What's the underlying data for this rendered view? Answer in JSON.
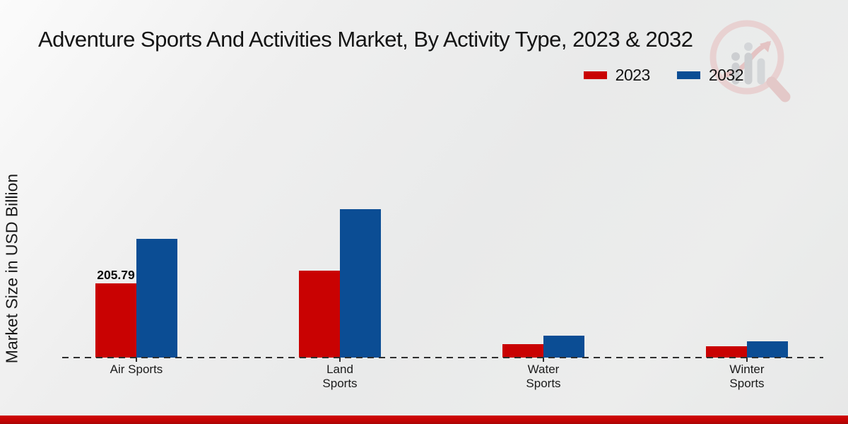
{
  "title": "Adventure Sports And Activities Market, By Activity Type, 2023 & 2032",
  "legend": {
    "items": [
      {
        "label": "2023",
        "color": "#c90202"
      },
      {
        "label": "2032",
        "color": "#0b4d94"
      }
    ]
  },
  "icons": {
    "watermark": "magnifier-bar-chart-logo"
  },
  "colors": {
    "bar_2023": "#c90202",
    "bar_2032": "#0b4d94",
    "footer_bar": "#c40404",
    "baseline": "#2e2e2e",
    "background": "#eaebeb"
  },
  "chart_data": {
    "type": "bar",
    "title": "Adventure Sports And Activities Market, By Activity Type, 2023 & 2032",
    "categories": [
      "Air Sports",
      "Land Sports",
      "Water Sports",
      "Winter Sports"
    ],
    "tick_label_lines": [
      [
        "Air Sports"
      ],
      [
        "Land",
        "Sports"
      ],
      [
        "Water",
        "Sports"
      ],
      [
        "Winter",
        "Sports"
      ]
    ],
    "series": [
      {
        "name": "2023",
        "color": "#c90202",
        "values": [
          205.79,
          241,
          37,
          31
        ]
      },
      {
        "name": "2032",
        "color": "#0b4d94",
        "values": [
          330,
          411,
          61,
          46
        ]
      }
    ],
    "annotations": [
      {
        "category_index": 0,
        "series_index": 0,
        "text": "205.79"
      }
    ],
    "xlabel": "",
    "ylabel": "Market Size in USD Billion",
    "ylim": [
      0,
      450
    ],
    "grid": false,
    "legend_position": "top-right",
    "baseline_style": "dashed",
    "units": "USD Billion"
  }
}
